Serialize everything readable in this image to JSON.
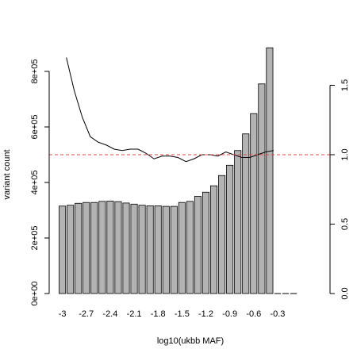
{
  "chart_data": {
    "type": "bar",
    "xlabel": "log10(ukbb MAF)",
    "ylabel": "variant count",
    "x_tick_labels": [
      "-3",
      "-2.7",
      "-2.4",
      "-2.1",
      "-1.8",
      "-1.5",
      "-1.2",
      "-0.9",
      "-0.6",
      "-0.3"
    ],
    "x_tick_values": [
      -3,
      -2.7,
      -2.4,
      -2.1,
      -1.8,
      -1.5,
      -1.2,
      -0.9,
      -0.6,
      -0.3
    ],
    "bin_width": 0.1,
    "bin_starts": [
      -3.0,
      -2.9,
      -2.8,
      -2.7,
      -2.6,
      -2.5,
      -2.4,
      -2.3,
      -2.2,
      -2.1,
      -2.0,
      -1.9,
      -1.8,
      -1.7,
      -1.6,
      -1.5,
      -1.4,
      -1.3,
      -1.2,
      -1.1,
      -1.0,
      -0.9,
      -0.8,
      -0.7,
      -0.6,
      -0.5,
      -0.4,
      -0.3,
      -0.2,
      -0.1
    ],
    "counts": [
      315000,
      318000,
      325000,
      328000,
      328000,
      332000,
      333000,
      331000,
      326000,
      322000,
      318000,
      316000,
      316000,
      314000,
      314000,
      328000,
      332000,
      350000,
      365000,
      388000,
      425000,
      462000,
      515000,
      575000,
      648000,
      755000,
      885000,
      0,
      0,
      0
    ],
    "left_axis": {
      "ylim": [
        0,
        900000
      ],
      "tick_values": [
        0,
        200000,
        400000,
        600000,
        800000
      ],
      "tick_labels": [
        "0e+00",
        "2e+05",
        "4e+05",
        "6e+05",
        "8e+05"
      ]
    },
    "right_axis": {
      "ylim": [
        0,
        1.8
      ],
      "tick_values": [
        0.0,
        0.5,
        1.0,
        1.5
      ],
      "tick_labels": [
        "0.0",
        "0.5",
        "1.0",
        "1.5"
      ]
    },
    "ratio_line": {
      "x": [
        -2.95,
        -2.85,
        -2.75,
        -2.65,
        -2.55,
        -2.45,
        -2.35,
        -2.25,
        -2.15,
        -2.05,
        -1.95,
        -1.85,
        -1.75,
        -1.65,
        -1.55,
        -1.45,
        -1.35,
        -1.25,
        -1.15,
        -1.05,
        -0.95,
        -0.85,
        -0.75,
        -0.65,
        -0.55,
        -0.45,
        -0.35
      ],
      "y": [
        1.7,
        1.46,
        1.27,
        1.13,
        1.09,
        1.07,
        1.04,
        1.03,
        1.04,
        1.04,
        1.01,
        0.97,
        0.99,
        0.99,
        0.98,
        0.95,
        0.97,
        1.0,
        1.0,
        0.99,
        1.02,
        1.0,
        0.98,
        0.98,
        1.0,
        1.02,
        1.03
      ]
    },
    "reference_line": {
      "y": 1.0,
      "axis": "right",
      "color": "#e8414a",
      "style": "dashed"
    },
    "bar_color": "#b3b3b3",
    "grid": false
  }
}
